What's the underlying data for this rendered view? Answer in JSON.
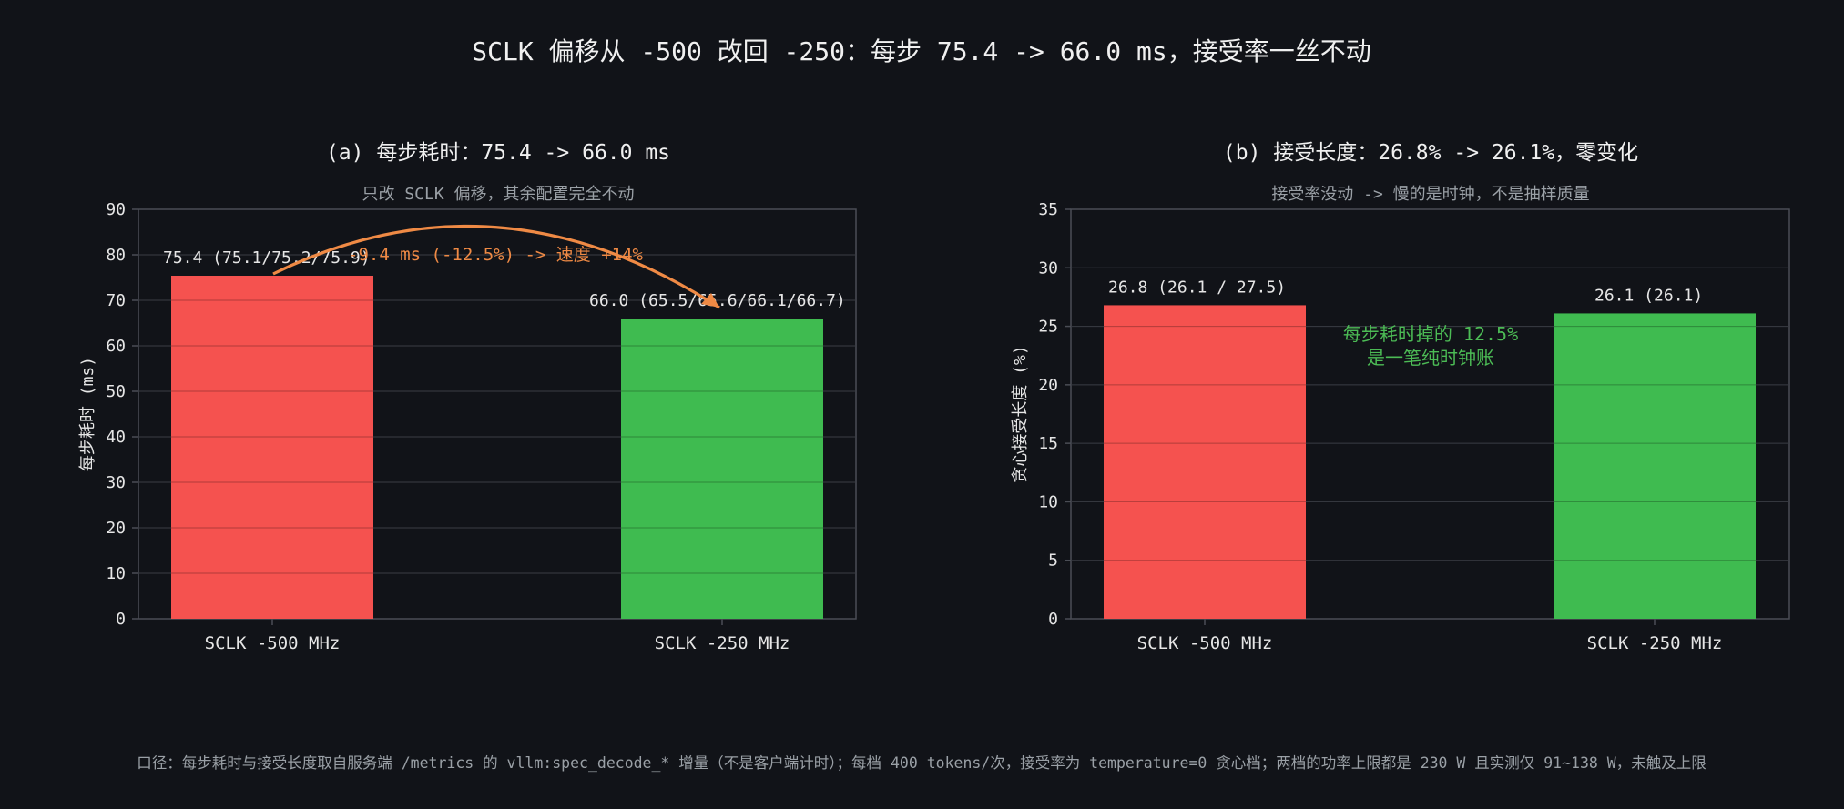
{
  "figure": {
    "title": "SCLK 偏移从 -500 改回 -250：每步 75.4 -> 66.0 ms，接受率一丝不动",
    "footnote": "口径：每步耗时与接受长度取自服务端 /metrics 的 vllm:spec_decode_* 增量（不是客户端计时）；每档 400 tokens/次，接受率为 temperature=0 贪心档；两档的功率上限都是 230 W 且实测仅 91~138 W，未触及上限"
  },
  "colors": {
    "background": "#111318",
    "red_bar": "#f5524f",
    "green_bar": "#3fbb50",
    "orange_annotation": "#ef8a45",
    "green_annotation": "#4cbb55",
    "grid": "#3a3d44",
    "axis": "#4a4d55",
    "text": "#e6e6e6",
    "muted_text": "#9aa0a6"
  },
  "chart_data": [
    {
      "type": "bar",
      "title": "(a) 每步耗时：75.4 -> 66.0 ms",
      "subtitle": "只改 SCLK 偏移，其余配置完全不动",
      "categories": [
        "SCLK -500 MHz",
        "SCLK -250 MHz"
      ],
      "values": [
        75.4,
        66.0
      ],
      "bar_colors": [
        "#f5524f",
        "#3fbb50"
      ],
      "data_labels": [
        "75.4  (75.1/75.2/75.9)",
        "66.0  (65.5/65.6/66.1/66.7)"
      ],
      "ylabel": "每步耗时 (ms)",
      "ylim": [
        0,
        90
      ],
      "yticks": [
        0,
        10,
        20,
        30,
        40,
        50,
        60,
        70,
        80,
        90
      ],
      "grid": true,
      "annotation": {
        "text": "-9.4 ms  (-12.5%)  ->  速度 +14%",
        "from_value": 75.4,
        "to_value": 66.0
      }
    },
    {
      "type": "bar",
      "title": "(b) 接受长度：26.8% -> 26.1%，零变化",
      "subtitle": "接受率没动 -> 慢的是时钟，不是抽样质量",
      "categories": [
        "SCLK -500 MHz",
        "SCLK -250 MHz"
      ],
      "values": [
        26.8,
        26.1
      ],
      "bar_colors": [
        "#f5524f",
        "#3fbb50"
      ],
      "data_labels": [
        "26.8  (26.1 / 27.5)",
        "26.1  (26.1)"
      ],
      "ylabel": "贪心接受长度 (%)",
      "ylim": [
        0,
        35
      ],
      "yticks": [
        0,
        5,
        10,
        15,
        20,
        25,
        30,
        35
      ],
      "grid": true,
      "annotation": {
        "lines": [
          "每步耗时掉的 12.5%",
          "是一笔纯时钟账"
        ]
      }
    }
  ]
}
